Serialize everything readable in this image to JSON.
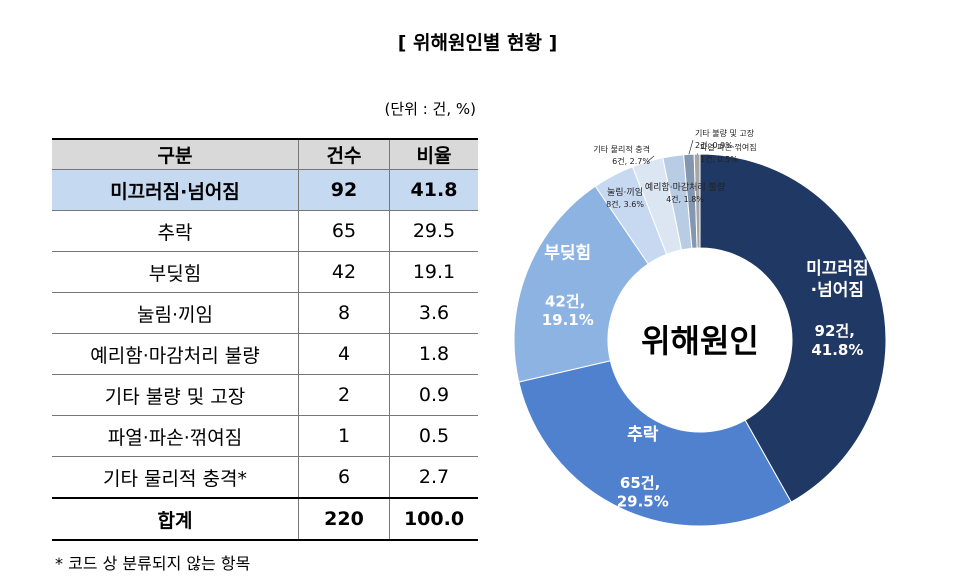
{
  "title": "[ 위해원인별 현황 ]",
  "unit": "(단위 : 건, %)",
  "table": {
    "header": [
      "구분",
      "건수",
      "비율"
    ],
    "rows": [
      [
        "미끄러짐·넘어짐",
        "92",
        "41.8"
      ],
      [
        "추락",
        "65",
        "29.5"
      ],
      [
        "부딪힘",
        "42",
        "19.1"
      ],
      [
        "눌림·끼임",
        "8",
        "3.6"
      ],
      [
        "예리함·마감처리 불량",
        "4",
        "1.8"
      ],
      [
        "기타 불량 및 고장",
        "2",
        "0.9"
      ],
      [
        "파열·파손·꺾여짐",
        "1",
        "0.5"
      ],
      [
        "기타 물리적 충격*",
        "6",
        "2.7"
      ],
      [
        "합계",
        "220",
        "100.0"
      ]
    ]
  },
  "footnote": "* 코드 상 분류되지 않는 항목",
  "chart_data": {
    "type": "donut",
    "center_text": "위해원인",
    "categories": [
      "미끄러짐·넘어짐",
      "추락",
      "부딪힘",
      "눌림·끼임",
      "기타 물리적 충격",
      "예리함·마감처리 불량",
      "기타 불량 및 고장",
      "파열·파손·꺾여짐"
    ],
    "values": [
      41.8,
      29.5,
      19.1,
      3.6,
      2.7,
      1.8,
      0.9,
      0.5
    ],
    "value_labels": [
      "92건, 41.8%",
      "65건, 29.5%",
      "42건, 19.1%",
      "8건, 3.6%",
      "6건, 2.7%",
      "4건, 1.8%",
      "2건, 0.9%",
      "1건, 0.5%"
    ],
    "colors": [
      "#1f3864",
      "#4f81cf",
      "#8db3e2",
      "#c6d9f1",
      "#dce6f2",
      "#b8cce4",
      "#8497b0",
      "#a6a6a6"
    ]
  }
}
